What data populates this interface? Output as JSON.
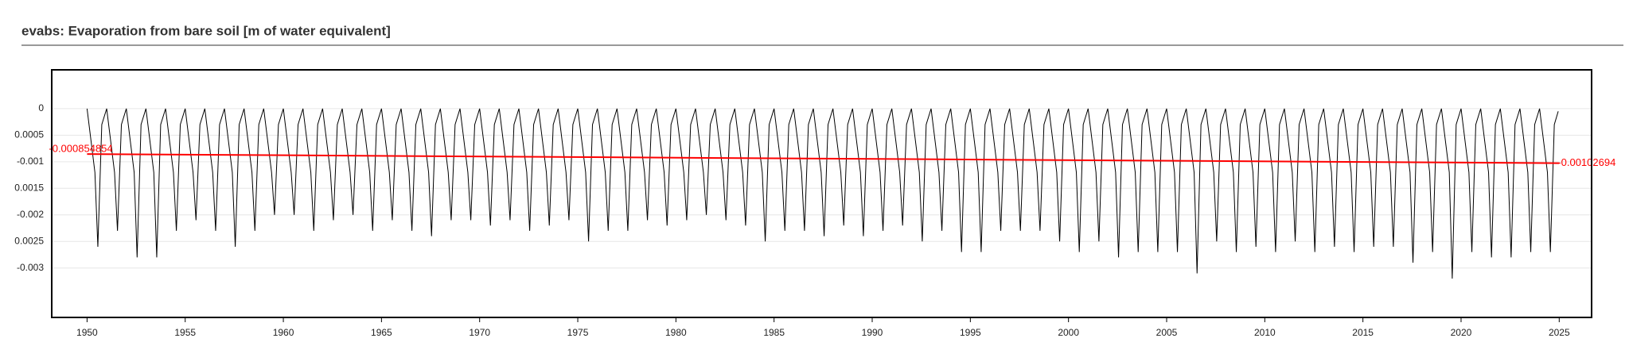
{
  "chart_data": {
    "type": "line",
    "title": "evabs: Evaporation from bare soil [m of water equivalent]",
    "xlim": [
      1948.2,
      2026.65
    ],
    "ylim": [
      -0.00393,
      0.00073
    ],
    "xticks": [
      1950,
      1955,
      1960,
      1965,
      1970,
      1975,
      1980,
      1985,
      1990,
      1995,
      2000,
      2005,
      2010,
      2015,
      2020,
      2025
    ],
    "yticks": [
      0,
      {
        "value": -0.0005,
        "label": "0.0005"
      },
      -0.001,
      {
        "value": -0.0015,
        "label": "0.0015"
      },
      -0.002,
      {
        "value": -0.0025,
        "label": "0.0025"
      },
      -0.003
    ],
    "grid": true,
    "series": [
      {
        "color": "#000000",
        "x": [
          1950,
          1950.4,
          1950.55,
          1950.75,
          1951,
          1951.4,
          1951.55,
          1951.75,
          1952,
          1952.4,
          1952.55,
          1952.75,
          1953,
          1953.4,
          1953.55,
          1953.75,
          1954,
          1954.4,
          1954.55,
          1954.75,
          1955,
          1955.4,
          1955.55,
          1955.75,
          1956,
          1956.4,
          1956.55,
          1956.75,
          1957,
          1957.4,
          1957.55,
          1957.75,
          1958,
          1958.4,
          1958.55,
          1958.75,
          1959,
          1959.4,
          1959.55,
          1959.75,
          1960,
          1960.4,
          1960.55,
          1960.75,
          1961,
          1961.4,
          1961.55,
          1961.75,
          1962,
          1962.4,
          1962.55,
          1962.75,
          1963,
          1963.4,
          1963.55,
          1963.75,
          1964,
          1964.4,
          1964.55,
          1964.75,
          1965,
          1965.4,
          1965.55,
          1965.75,
          1966,
          1966.4,
          1966.55,
          1966.75,
          1967,
          1967.4,
          1967.55,
          1967.75,
          1968,
          1968.4,
          1968.55,
          1968.75,
          1969,
          1969.4,
          1969.55,
          1969.75,
          1970,
          1970.4,
          1970.55,
          1970.75,
          1971,
          1971.4,
          1971.55,
          1971.75,
          1972,
          1972.4,
          1972.55,
          1972.75,
          1973,
          1973.4,
          1973.55,
          1973.75,
          1974,
          1974.4,
          1974.55,
          1974.75,
          1975,
          1975.4,
          1975.55,
          1975.75,
          1976,
          1976.4,
          1976.55,
          1976.75,
          1977,
          1977.4,
          1977.55,
          1977.75,
          1978,
          1978.4,
          1978.55,
          1978.75,
          1979,
          1979.4,
          1979.55,
          1979.75,
          1980,
          1980.4,
          1980.55,
          1980.75,
          1981,
          1981.4,
          1981.55,
          1981.75,
          1982,
          1982.4,
          1982.55,
          1982.75,
          1983,
          1983.4,
          1983.55,
          1983.75,
          1984,
          1984.4,
          1984.55,
          1984.75,
          1985,
          1985.4,
          1985.55,
          1985.75,
          1986,
          1986.4,
          1986.55,
          1986.75,
          1987,
          1987.4,
          1987.55,
          1987.75,
          1988,
          1988.4,
          1988.55,
          1988.75,
          1989,
          1989.4,
          1989.55,
          1989.75,
          1990,
          1990.4,
          1990.55,
          1990.75,
          1991,
          1991.4,
          1991.55,
          1991.75,
          1992,
          1992.4,
          1992.55,
          1992.75,
          1993,
          1993.4,
          1993.55,
          1993.75,
          1994,
          1994.4,
          1994.55,
          1994.75,
          1995,
          1995.4,
          1995.55,
          1995.75,
          1996,
          1996.4,
          1996.55,
          1996.75,
          1997,
          1997.4,
          1997.55,
          1997.75,
          1998,
          1998.4,
          1998.55,
          1998.75,
          1999,
          1999.4,
          1999.55,
          1999.75,
          2000,
          2000.4,
          2000.55,
          2000.75,
          2001,
          2001.4,
          2001.55,
          2001.75,
          2002,
          2002.4,
          2002.55,
          2002.75,
          2003,
          2003.4,
          2003.55,
          2003.75,
          2004,
          2004.4,
          2004.55,
          2004.75,
          2005,
          2005.4,
          2005.55,
          2005.75,
          2006,
          2006.4,
          2006.55,
          2006.75,
          2007,
          2007.4,
          2007.55,
          2007.75,
          2008,
          2008.4,
          2008.55,
          2008.75,
          2009,
          2009.4,
          2009.55,
          2009.75,
          2010,
          2010.4,
          2010.55,
          2010.75,
          2011,
          2011.4,
          2011.55,
          2011.75,
          2012,
          2012.4,
          2012.55,
          2012.75,
          2013,
          2013.4,
          2013.55,
          2013.75,
          2014,
          2014.4,
          2014.55,
          2014.75,
          2015,
          2015.4,
          2015.55,
          2015.75,
          2016,
          2016.4,
          2016.55,
          2016.75,
          2017,
          2017.4,
          2017.55,
          2017.75,
          2018,
          2018.4,
          2018.55,
          2018.75,
          2019,
          2019.4,
          2019.55,
          2019.75,
          2020,
          2020.4,
          2020.55,
          2020.75,
          2021,
          2021.4,
          2021.55,
          2021.75,
          2022,
          2022.4,
          2022.55,
          2022.75,
          2023,
          2023.4,
          2023.55,
          2023.75,
          2024,
          2024.4,
          2024.55,
          2024.75,
          2024.95
        ],
        "values": [
          0,
          -0.0012,
          -0.0026,
          -0.0003,
          0,
          -0.0012,
          -0.0023,
          -0.0003,
          0,
          -0.0012,
          -0.0028,
          -0.0003,
          0,
          -0.0012,
          -0.0028,
          -0.0003,
          0,
          -0.0012,
          -0.0023,
          -0.0003,
          0,
          -0.0012,
          -0.0021,
          -0.0003,
          0,
          -0.0012,
          -0.0023,
          -0.0003,
          0,
          -0.0012,
          -0.0026,
          -0.0003,
          0,
          -0.0012,
          -0.0023,
          -0.0003,
          0,
          -0.0012,
          -0.002,
          -0.0003,
          0,
          -0.0012,
          -0.002,
          -0.0003,
          0,
          -0.0012,
          -0.0023,
          -0.0003,
          0,
          -0.0012,
          -0.0021,
          -0.0003,
          0,
          -0.0012,
          -0.002,
          -0.0003,
          0,
          -0.0012,
          -0.0023,
          -0.0003,
          0,
          -0.0012,
          -0.0021,
          -0.0003,
          0,
          -0.0012,
          -0.0023,
          -0.0003,
          0,
          -0.0012,
          -0.0024,
          -0.0003,
          0,
          -0.0012,
          -0.0021,
          -0.0003,
          0,
          -0.0012,
          -0.0021,
          -0.0003,
          0,
          -0.0012,
          -0.0022,
          -0.0003,
          0,
          -0.0012,
          -0.0021,
          -0.0003,
          0,
          -0.0012,
          -0.0023,
          -0.0003,
          0,
          -0.0012,
          -0.0022,
          -0.0003,
          0,
          -0.0012,
          -0.0021,
          -0.0003,
          0,
          -0.0012,
          -0.0025,
          -0.0003,
          0,
          -0.0012,
          -0.0023,
          -0.0003,
          0,
          -0.0012,
          -0.0023,
          -0.0003,
          0,
          -0.0012,
          -0.0021,
          -0.0003,
          0,
          -0.0012,
          -0.0022,
          -0.0003,
          0,
          -0.0012,
          -0.0021,
          -0.0003,
          0,
          -0.0012,
          -0.002,
          -0.0003,
          0,
          -0.0012,
          -0.0021,
          -0.0003,
          0,
          -0.0012,
          -0.0022,
          -0.0003,
          0,
          -0.0012,
          -0.0025,
          -0.0003,
          0,
          -0.0012,
          -0.0023,
          -0.0003,
          0,
          -0.0012,
          -0.0023,
          -0.0003,
          0,
          -0.0012,
          -0.0024,
          -0.0003,
          0,
          -0.0012,
          -0.0022,
          -0.0003,
          0,
          -0.0012,
          -0.0024,
          -0.0003,
          0,
          -0.0012,
          -0.0023,
          -0.0003,
          0,
          -0.0012,
          -0.0022,
          -0.0003,
          0,
          -0.0012,
          -0.0025,
          -0.0003,
          0,
          -0.0012,
          -0.0023,
          -0.0003,
          0,
          -0.0012,
          -0.0027,
          -0.0003,
          0,
          -0.0012,
          -0.0027,
          -0.0003,
          0,
          -0.0012,
          -0.0023,
          -0.0003,
          0,
          -0.0012,
          -0.0023,
          -0.0003,
          0,
          -0.0012,
          -0.0023,
          -0.0003,
          0,
          -0.0012,
          -0.0025,
          -0.0003,
          0,
          -0.0012,
          -0.0027,
          -0.0003,
          0,
          -0.0012,
          -0.0025,
          -0.0003,
          0,
          -0.0012,
          -0.0028,
          -0.0003,
          0,
          -0.0012,
          -0.0027,
          -0.0003,
          0,
          -0.0012,
          -0.0027,
          -0.0003,
          0,
          -0.0012,
          -0.0027,
          -0.0003,
          0,
          -0.0012,
          -0.0031,
          -0.0003,
          0,
          -0.0012,
          -0.0025,
          -0.0003,
          0,
          -0.0012,
          -0.0027,
          -0.0003,
          0,
          -0.0012,
          -0.0026,
          -0.0003,
          0,
          -0.0012,
          -0.0027,
          -0.0003,
          0,
          -0.0012,
          -0.0025,
          -0.0003,
          0,
          -0.0012,
          -0.0027,
          -0.0003,
          0,
          -0.0012,
          -0.0026,
          -0.0003,
          0,
          -0.0012,
          -0.0027,
          -0.0003,
          0,
          -0.0012,
          -0.0026,
          -0.0003,
          0,
          -0.0012,
          -0.0026,
          -0.0003,
          0,
          -0.0012,
          -0.0029,
          -0.0003,
          0,
          -0.0012,
          -0.0027,
          -0.0003,
          0,
          -0.0012,
          -0.0032,
          -0.0003,
          0,
          -0.0012,
          -0.0027,
          -0.0003,
          0,
          -0.0012,
          -0.0028,
          -0.0003,
          0,
          -0.0012,
          -0.0028,
          -0.0003,
          0,
          -0.0012,
          -0.0027,
          -0.0003,
          0,
          -0.0012,
          -0.0027,
          -0.0003,
          -5e-05
        ]
      },
      {
        "color": "#ff0000",
        "x": [
          1950,
          2025
        ],
        "values": [
          -0.000854854,
          -0.00102694
        ]
      }
    ]
  }
}
